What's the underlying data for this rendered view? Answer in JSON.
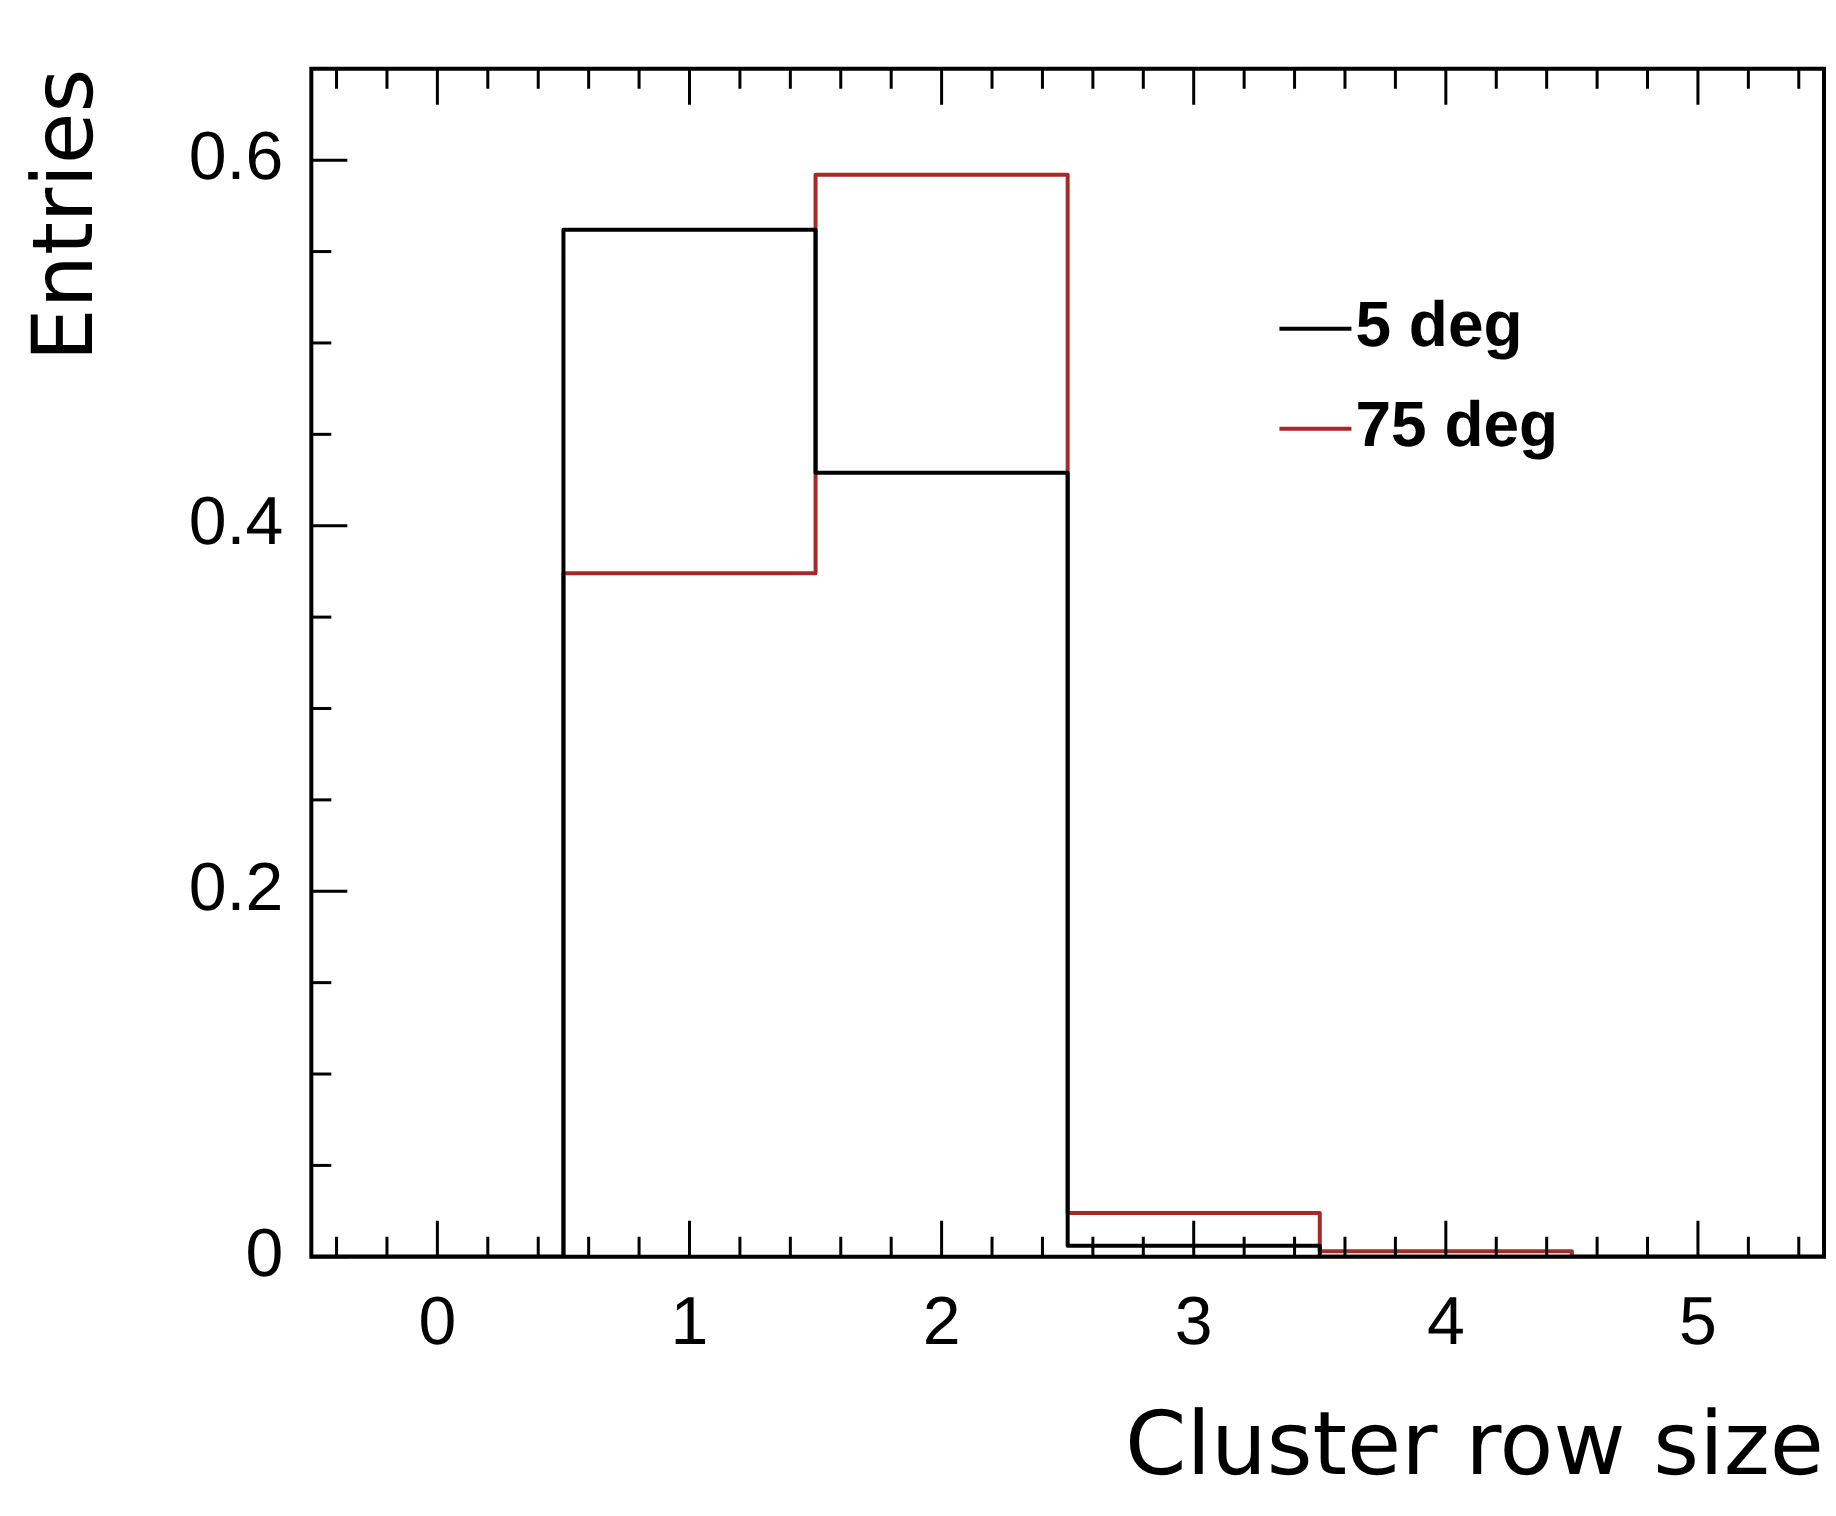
{
  "chart_data": {
    "type": "histogram",
    "xlabel": "Cluster row size",
    "ylabel": "Entries",
    "bins": [
      -0.5,
      0.5,
      1.5,
      2.5,
      3.5,
      4.5,
      5.5
    ],
    "series": [
      {
        "name": "5 deg",
        "color": "#000000",
        "values": [
          0,
          0.562,
          0.429,
          0.006,
          0,
          0
        ]
      },
      {
        "name": "75 deg",
        "color": "#a52a2a",
        "values": [
          0,
          0.374,
          0.592,
          0.024,
          0.003,
          0
        ]
      }
    ],
    "xlim": [
      -0.5,
      5.5
    ],
    "ylim": [
      0,
      0.65
    ],
    "xticks": [
      {
        "value": -0.4,
        "label": null
      },
      {
        "value": -0.2,
        "label": null
      },
      0,
      {
        "value": 0.2,
        "label": null
      },
      {
        "value": 0.4,
        "label": null
      },
      {
        "value": 0.6,
        "label": null
      },
      {
        "value": 0.8,
        "label": null
      },
      1,
      {
        "value": 1.2,
        "label": null
      },
      {
        "value": 1.4,
        "label": null
      },
      {
        "value": 1.6,
        "label": null
      },
      {
        "value": 1.8,
        "label": null
      },
      2,
      {
        "value": 2.2,
        "label": null
      },
      {
        "value": 2.4,
        "label": null
      },
      {
        "value": 2.6,
        "label": null
      },
      {
        "value": 2.8,
        "label": null
      },
      3,
      {
        "value": 3.2,
        "label": null
      },
      {
        "value": 3.4,
        "label": null
      },
      {
        "value": 3.6,
        "label": null
      },
      {
        "value": 3.8,
        "label": null
      },
      4,
      {
        "value": 4.2,
        "label": null
      },
      {
        "value": 4.4,
        "label": null
      },
      {
        "value": 4.6,
        "label": null
      },
      {
        "value": 4.8,
        "label": null
      },
      5,
      {
        "value": 5.2,
        "label": null
      },
      {
        "value": 5.4,
        "label": null
      }
    ],
    "yticks": [
      0,
      {
        "value": 0.05,
        "label": null
      },
      {
        "value": 0.1,
        "label": null
      },
      {
        "value": 0.15,
        "label": null
      },
      0.2,
      {
        "value": 0.25,
        "label": null
      },
      {
        "value": 0.3,
        "label": null
      },
      {
        "value": 0.35,
        "label": null
      },
      0.4,
      {
        "value": 0.45,
        "label": null
      },
      {
        "value": 0.5,
        "label": null
      },
      {
        "value": 0.55,
        "label": null
      },
      0.6
    ],
    "grid": false,
    "legend": "top right"
  }
}
